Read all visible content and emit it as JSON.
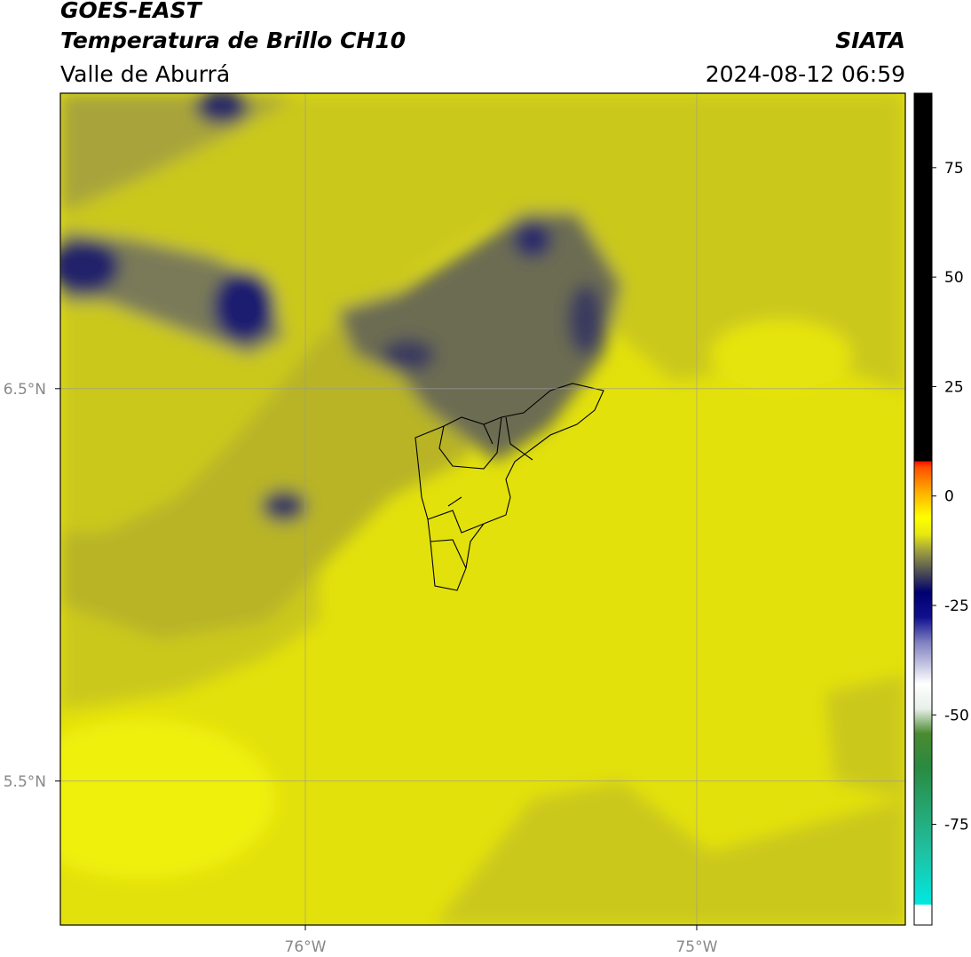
{
  "header": {
    "source": "GOES-EAST",
    "title": "Temperatura de Brillo CH10",
    "region": "Valle de Aburrá",
    "agency": "SIATA",
    "datetime": "2024-08-12 06:59"
  },
  "map": {
    "xlim": [
      -76.626,
      -74.467
    ],
    "ylim": [
      5.133,
      7.253
    ],
    "xticks": [
      {
        "value": -76,
        "label": "76°W"
      },
      {
        "value": -75,
        "label": "75°W"
      }
    ],
    "yticks": [
      {
        "value": 6.5,
        "label": "6.5°N"
      },
      {
        "value": 5.5,
        "label": "5.5°N"
      }
    ],
    "grid": true
  },
  "colorbar": {
    "lim": [
      -98,
      92
    ],
    "ticks": [
      75,
      50,
      25,
      0,
      -25,
      -50,
      -75
    ]
  }
}
